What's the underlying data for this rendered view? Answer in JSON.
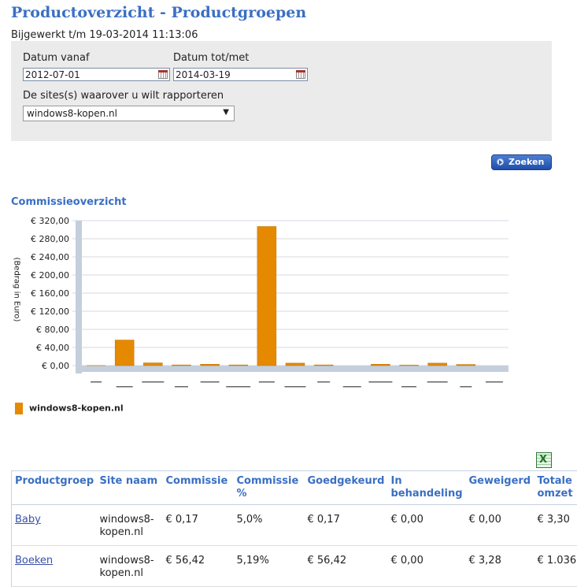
{
  "page": {
    "title": "Productoverzicht - Productgroepen",
    "updated": "Bijgewerkt t/m 19-03-2014 11:13:06"
  },
  "filters": {
    "date_from_label": "Datum vanaf",
    "date_from_value": "2012-07-01",
    "date_to_label": "Datum tot/met",
    "date_to_value": "2014-03-19",
    "sites_label": "De sites(s) waarover u wilt rapporteren",
    "site_selected": "windows8-kopen.nl",
    "search_button": "Zoeken"
  },
  "chart_section_title": "Commissieoverzicht",
  "colors": {
    "accent": "#3a6fc4",
    "bar": "#e58a00"
  },
  "chart_data": {
    "type": "bar",
    "ylabel": "(Bedrag in Euro)",
    "ylim": [
      0,
      320
    ],
    "yticks": [
      "€ 0,00",
      "€ 40,00",
      "€ 80,00",
      "€ 120,00",
      "€ 160,00",
      "€ 200,00",
      "€ 240,00",
      "€ 280,00",
      "€ 320,00"
    ],
    "series": [
      {
        "name": "windows8-kopen.nl",
        "values": [
          0.17,
          56.42,
          6.0,
          1.5,
          3.0,
          1.5,
          307.0,
          5.5,
          1.5,
          0,
          3.0,
          1.0,
          5.5,
          2.5,
          0
        ]
      }
    ],
    "legend": "bottom-left",
    "grid": true
  },
  "table": {
    "export_icon": "excel-icon",
    "headers": [
      "Productgroep",
      "Site naam",
      "Commissie",
      "Commissie %",
      "Goedgekeurd",
      "In behandeling",
      "Geweigerd",
      "Totale omzet"
    ],
    "rows": [
      [
        "Baby",
        "windows8-kopen.nl",
        "€ 0,17",
        "5,0%",
        "€ 0,17",
        "€ 0,00",
        "€ 0,00",
        "€ 3,30"
      ],
      [
        "Boeken",
        "windows8-kopen.nl",
        "€ 56,42",
        "5,19%",
        "€ 56,42",
        "€ 0,00",
        "€ 3,28",
        "€ 1.036"
      ]
    ]
  }
}
